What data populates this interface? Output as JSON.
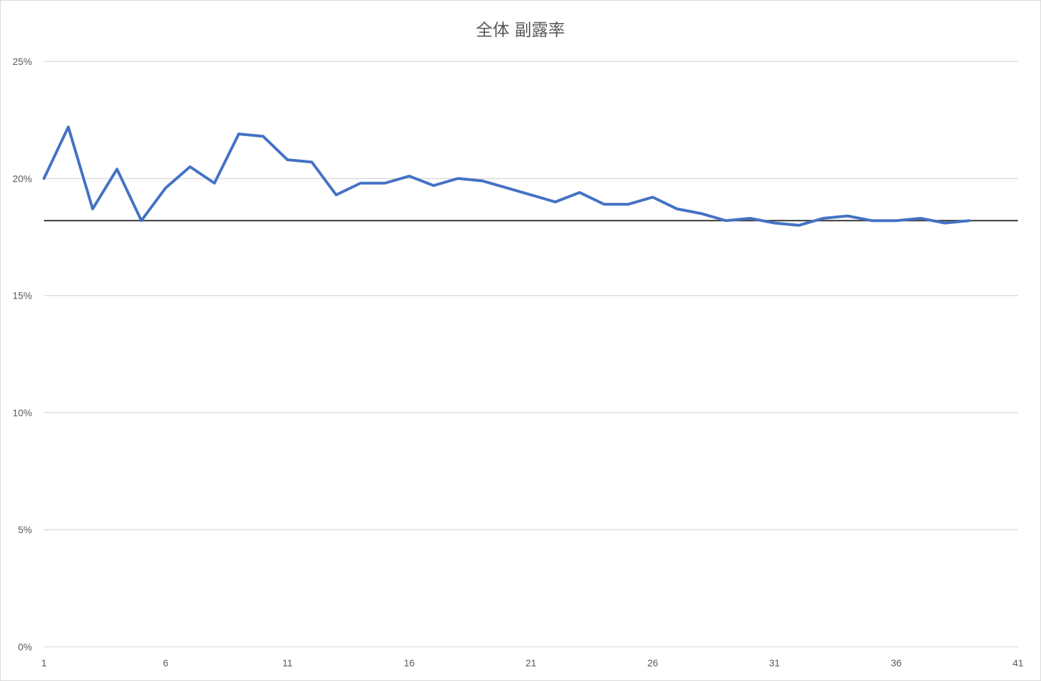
{
  "chart_data": {
    "type": "line",
    "title": "全体 副露率",
    "xlabel": "",
    "ylabel": "",
    "x_ticks": [
      1,
      6,
      11,
      16,
      21,
      26,
      31,
      36,
      41
    ],
    "xlim": [
      1,
      41
    ],
    "y_ticks": [
      "0%",
      "5%",
      "10%",
      "15%",
      "20%",
      "25%"
    ],
    "ylim": [
      0,
      0.25
    ],
    "grid": true,
    "legend": "none",
    "series": [
      {
        "color": "#4472c4",
        "x": [
          1,
          2,
          3,
          4,
          5,
          6,
          7,
          8,
          9,
          10,
          11,
          12,
          13,
          14,
          15,
          16,
          17,
          18,
          19,
          20,
          21,
          22,
          23,
          24,
          25,
          26,
          27,
          28,
          29,
          30,
          31,
          32,
          33,
          34,
          35,
          36,
          37,
          38,
          39
        ],
        "values": [
          0.2,
          0.222,
          0.187,
          0.204,
          0.182,
          0.196,
          0.205,
          0.198,
          0.219,
          0.218,
          0.208,
          0.207,
          0.193,
          0.198,
          0.198,
          0.201,
          0.197,
          0.2,
          0.199,
          0.196,
          0.193,
          0.19,
          0.194,
          0.189,
          0.189,
          0.192,
          0.187,
          0.185,
          0.182,
          0.183,
          0.181,
          0.18,
          0.183,
          0.184,
          0.182,
          0.182,
          0.183,
          0.181,
          0.182
        ]
      }
    ],
    "reference_line": {
      "value": 0.182,
      "color": "#404040"
    }
  }
}
